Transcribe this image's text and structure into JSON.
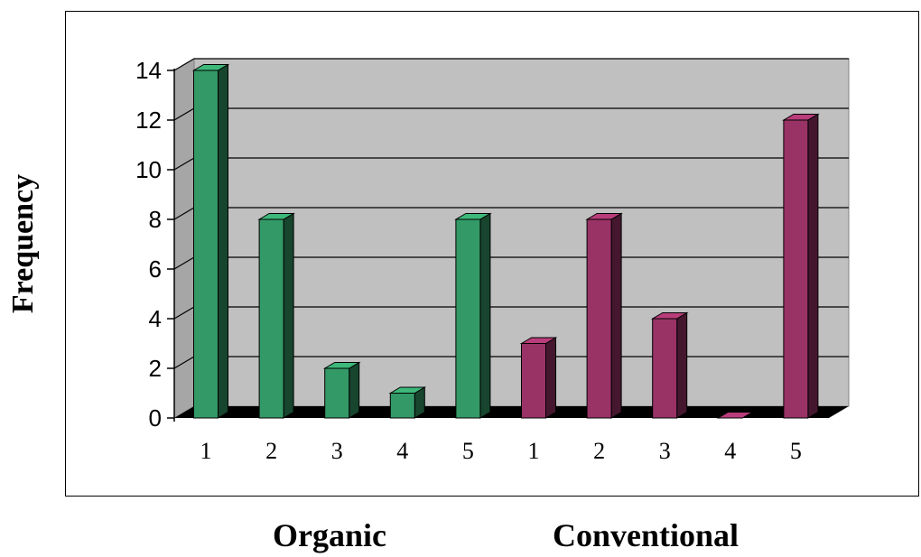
{
  "chart_data": {
    "type": "bar",
    "title": "",
    "xlabel": "",
    "ylabel": "Frequency",
    "ylim": [
      0,
      14
    ],
    "yticks": [
      0,
      2,
      4,
      6,
      8,
      10,
      12,
      14
    ],
    "grid": true,
    "legend": "none",
    "three_d": true,
    "groups": [
      {
        "name": "Organic",
        "color": "#339966",
        "categories": [
          "1",
          "2",
          "3",
          "4",
          "5"
        ],
        "values": [
          14,
          8,
          2,
          1,
          8
        ]
      },
      {
        "name": "Conventional",
        "color": "#993366",
        "categories": [
          "1",
          "2",
          "3",
          "4",
          "5"
        ],
        "values": [
          3,
          8,
          4,
          0,
          12
        ]
      }
    ],
    "plot_background": "#c0c0c0"
  }
}
